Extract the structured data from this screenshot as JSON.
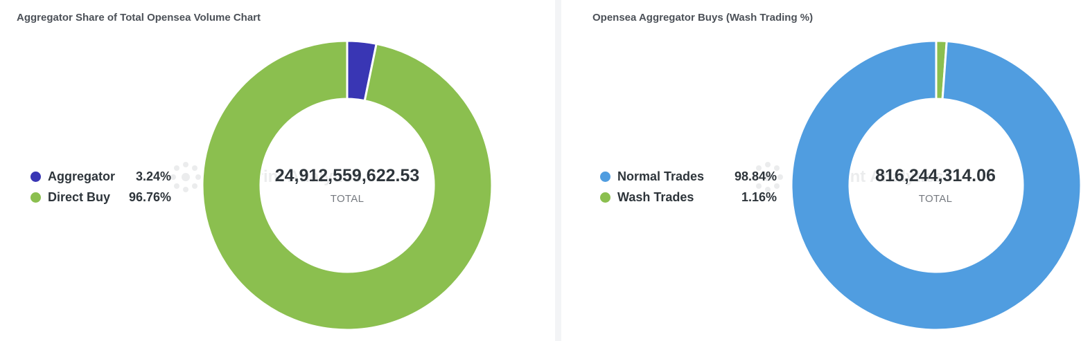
{
  "chart_data": [
    {
      "type": "pie",
      "title": "Aggregator Share of Total Opensea Volume Chart",
      "total": "24,912,559,622.53",
      "total_label": "TOTAL",
      "categories": [
        "Aggregator",
        "Direct Buy"
      ],
      "values": [
        3.24,
        96.76
      ],
      "labels": [
        "3.24%",
        "96.76%"
      ],
      "colors": [
        "#3936b4",
        "#8bbf4f"
      ],
      "legend": "left"
    },
    {
      "type": "pie",
      "title": "Opensea Aggregator Buys (Wash Trading %)",
      "total": "816,244,314.06",
      "total_label": "TOTAL",
      "categories": [
        "Wash Trades",
        "Normal Trades"
      ],
      "values": [
        1.16,
        98.84
      ],
      "labels": [
        "1.16%",
        "98.84%"
      ],
      "colors": [
        "#8bbf4f",
        "#509de0"
      ],
      "legend": "left"
    }
  ],
  "legends": [
    [
      {
        "label": "Aggregator",
        "pct": "3.24%",
        "color": "#3936b4"
      },
      {
        "label": "Direct Buy",
        "pct": "96.76%",
        "color": "#8bbf4f"
      }
    ],
    [
      {
        "label": "Normal Trades",
        "pct": "98.84%",
        "color": "#509de0"
      },
      {
        "label": "Wash Trades",
        "pct": "1.16%",
        "color": "#8bbf4f"
      }
    ]
  ],
  "watermark": "Footprint Analytics"
}
